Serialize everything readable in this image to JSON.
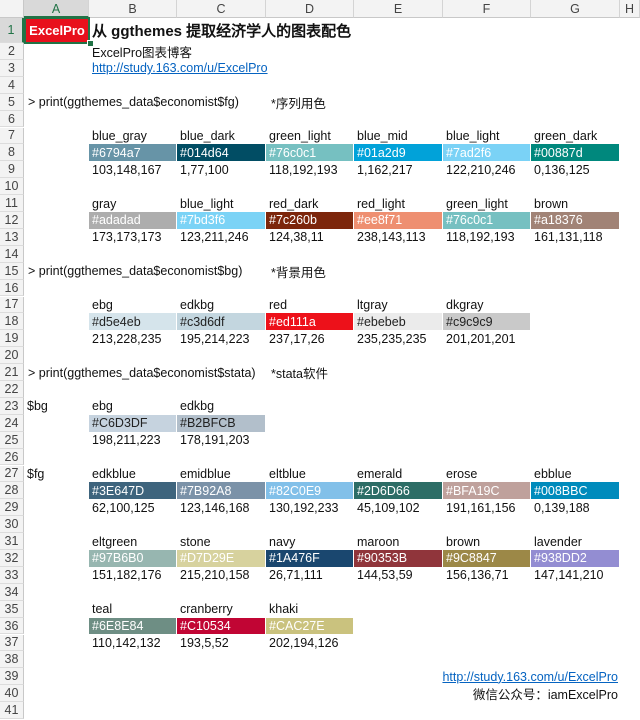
{
  "sheet": {
    "columns": [
      "A",
      "B",
      "C",
      "D",
      "E",
      "F",
      "G",
      "H"
    ],
    "selected_column": "A",
    "selected_row": 1,
    "row_count": 41
  },
  "header": {
    "badge": "ExcelPro",
    "title": "从 ggthemes 提取经济学人的图表配色",
    "subtitle": "ExcelPro图表博客",
    "link": "http://study.163.com/u/ExcelPro"
  },
  "colors": {
    "badge": "#e8101c",
    "selection": "#217346",
    "link": "#0563c1"
  },
  "sections": {
    "fg": {
      "command": "> print(ggthemes_data$economist$fg)",
      "note": "*序列用色",
      "groups": [
        [
          {
            "name": "blue_gray",
            "hex": "#6794a7",
            "rgb": "103,148,167"
          },
          {
            "name": "blue_dark",
            "hex": "#014d64",
            "rgb": "1,77,100"
          },
          {
            "name": "green_light",
            "hex": "#76c0c1",
            "rgb": "118,192,193"
          },
          {
            "name": "blue_mid",
            "hex": "#01a2d9",
            "rgb": "1,162,217"
          },
          {
            "name": "blue_light",
            "hex": "#7ad2f6",
            "rgb": "122,210,246"
          },
          {
            "name": "green_dark",
            "hex": "#00887d",
            "rgb": "0,136,125"
          }
        ],
        [
          {
            "name": "gray",
            "hex": "#adadad",
            "rgb": "173,173,173"
          },
          {
            "name": "blue_light",
            "hex": "#7bd3f6",
            "rgb": "123,211,246"
          },
          {
            "name": "red_dark",
            "hex": "#7c260b",
            "rgb": "124,38,11"
          },
          {
            "name": "red_light",
            "hex": "#ee8f71",
            "rgb": "238,143,113"
          },
          {
            "name": "green_light",
            "hex": "#76c0c1",
            "rgb": "118,192,193"
          },
          {
            "name": "brown",
            "hex": "#a18376",
            "rgb": "161,131,118"
          }
        ]
      ]
    },
    "bg": {
      "command": "> print(ggthemes_data$economist$bg)",
      "note": "*背景用色",
      "groups": [
        [
          {
            "name": "ebg",
            "hex": "#d5e4eb",
            "rgb": "213,228,235",
            "dark_text": true
          },
          {
            "name": "edkbg",
            "hex": "#c3d6df",
            "rgb": "195,214,223",
            "dark_text": true
          },
          {
            "name": "red",
            "hex": "#ed111a",
            "rgb": "237,17,26"
          },
          {
            "name": "ltgray",
            "hex": "#ebebeb",
            "rgb": "235,235,235",
            "dark_text": true
          },
          {
            "name": "dkgray",
            "hex": "#c9c9c9",
            "rgb": "201,201,201",
            "dark_text": true
          }
        ]
      ]
    },
    "stata": {
      "command": "> print(ggthemes_data$economist$stata)",
      "note": "*stata软件",
      "bg_label": "$bg",
      "bg_groups": [
        [
          {
            "name": "ebg",
            "hex": "#C6D3DF",
            "rgb": "198,211,223",
            "dark_text": true
          },
          {
            "name": "edkbg",
            "hex": "#B2BFCB",
            "rgb": "178,191,203",
            "dark_text": true
          }
        ]
      ],
      "fg_label": "$fg",
      "fg_groups": [
        [
          {
            "name": "edkblue",
            "hex": "#3E647D",
            "rgb": "62,100,125"
          },
          {
            "name": "emidblue",
            "hex": "#7B92A8",
            "rgb": "123,146,168"
          },
          {
            "name": "eltblue",
            "hex": "#82C0E9",
            "rgb": "130,192,233"
          },
          {
            "name": "emerald",
            "hex": "#2D6D66",
            "rgb": "45,109,102"
          },
          {
            "name": "erose",
            "hex": "#BFA19C",
            "rgb": "191,161,156"
          },
          {
            "name": "ebblue",
            "hex": "#008BBC",
            "rgb": "0,139,188"
          }
        ],
        [
          {
            "name": "eltgreen",
            "hex": "#97B6B0",
            "rgb": "151,182,176"
          },
          {
            "name": "stone",
            "hex": "#D7D29E",
            "rgb": "215,210,158"
          },
          {
            "name": "navy",
            "hex": "#1A476F",
            "rgb": "26,71,111"
          },
          {
            "name": "maroon",
            "hex": "#90353B",
            "rgb": "144,53,59"
          },
          {
            "name": "brown",
            "hex": "#9C8847",
            "rgb": "156,136,71"
          },
          {
            "name": "lavender",
            "hex": "#938DD2",
            "rgb": "147,141,210"
          }
        ],
        [
          {
            "name": "teal",
            "hex": "#6E8E84",
            "rgb": "110,142,132"
          },
          {
            "name": "cranberry",
            "hex": "#C10534",
            "rgb": "193,5,52"
          },
          {
            "name": "khaki",
            "hex": "#CAC27E",
            "rgb": "202,194,126"
          }
        ]
      ]
    }
  },
  "footer": {
    "link": "http://study.163.com/u/ExcelPro",
    "wechat": "微信公众号：iamExcelPro"
  }
}
